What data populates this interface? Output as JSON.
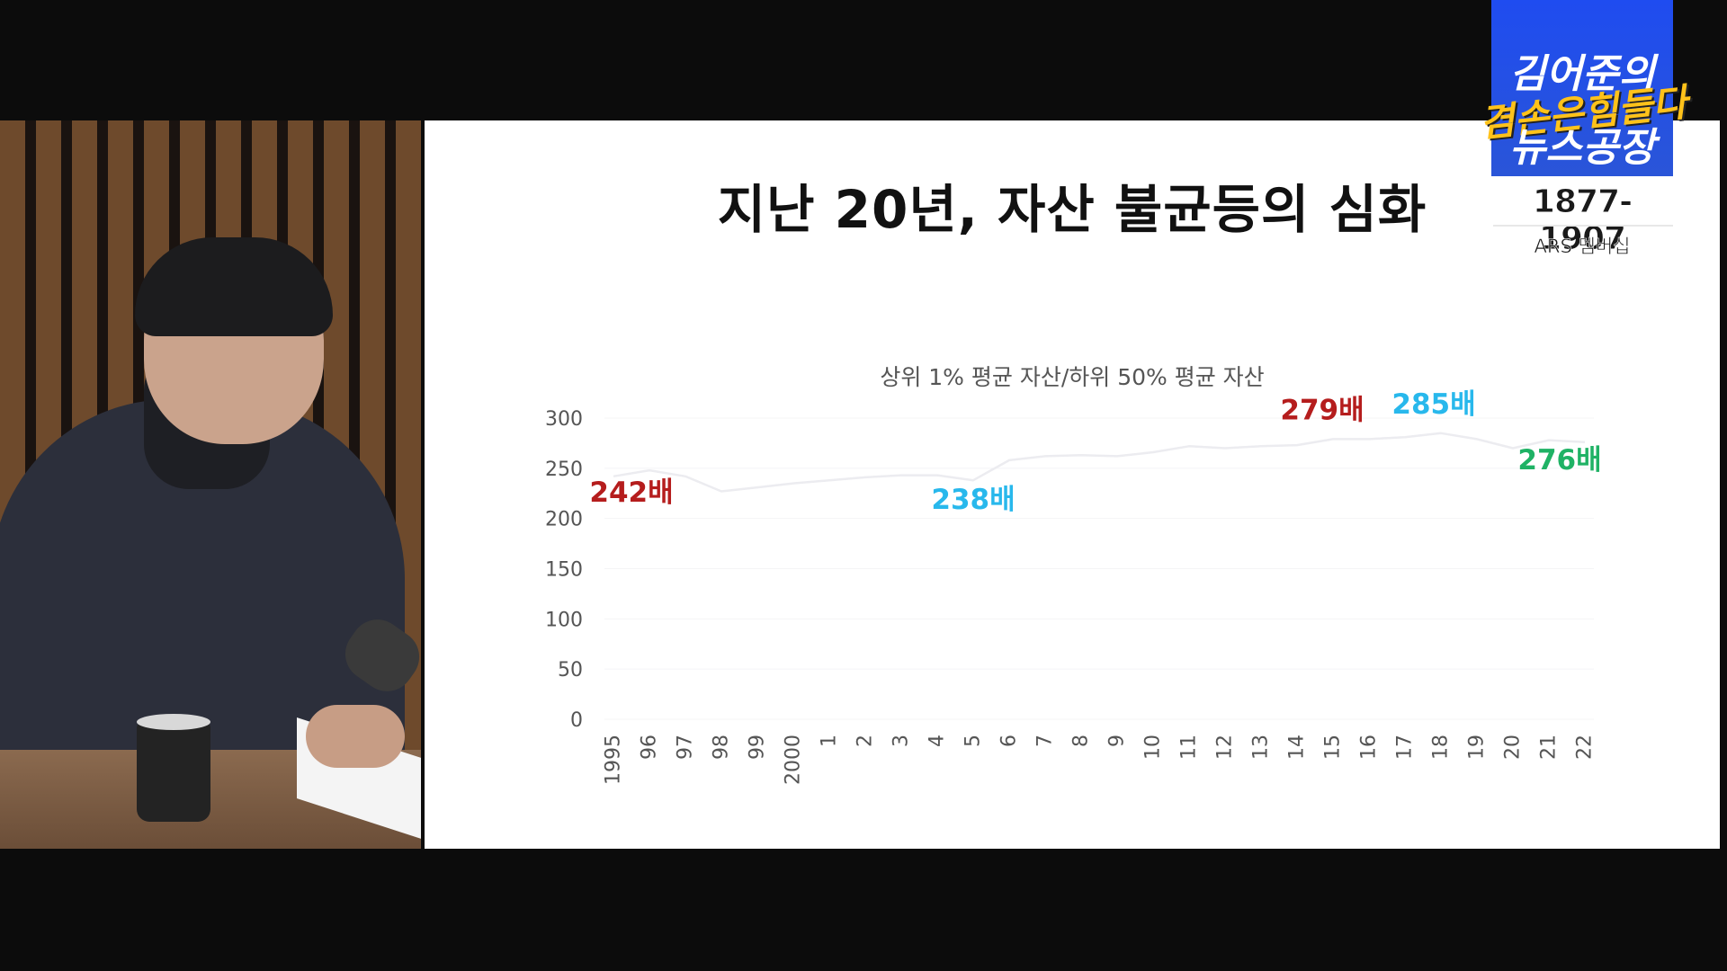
{
  "slide": {
    "title": "지난 20년, 자산 불균등의 심화"
  },
  "logo": {
    "line1": "김어준의",
    "accent": "겸손은힘들다",
    "line2": "뉴스공장",
    "years": "1877-1907",
    "ars": "ARS 멤버십"
  },
  "chart_data": {
    "type": "line",
    "title": "상위 1% 평균 자산/하위 50% 평균 자산",
    "x": [
      "1995",
      "96",
      "97",
      "98",
      "99",
      "2000",
      "1",
      "2",
      "3",
      "4",
      "5",
      "6",
      "7",
      "8",
      "9",
      "10",
      "11",
      "12",
      "13",
      "14",
      "15",
      "16",
      "17",
      "18",
      "19",
      "20",
      "21",
      "22"
    ],
    "series": [
      {
        "values": [
          242,
          248,
          242,
          227,
          231,
          235,
          238,
          241,
          243,
          243,
          238,
          258,
          262,
          263,
          262,
          266,
          272,
          270,
          272,
          273,
          279,
          279,
          281,
          285,
          279,
          270,
          278,
          276
        ],
        "color": "#ececf0"
      }
    ],
    "ylim": [
      0,
      300
    ],
    "yticks": [
      0,
      50,
      100,
      150,
      200,
      250,
      300
    ],
    "grid": true,
    "annotations": [
      {
        "label": "242배",
        "index": 0,
        "color": "#b51d1d"
      },
      {
        "label": "238배",
        "index": 10,
        "color": "#28b8ec"
      },
      {
        "label": "279배",
        "index": 20,
        "color": "#b51d1d"
      },
      {
        "label": "285배",
        "index": 23,
        "color": "#28b8ec"
      },
      {
        "label": "276배",
        "index": 27,
        "color": "#1fb265"
      }
    ]
  }
}
